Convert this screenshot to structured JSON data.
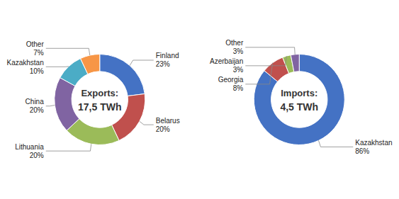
{
  "chart_data": [
    {
      "type": "donut",
      "title": "Exports:",
      "subtitle": "17,5 TWh",
      "categories": [
        "Finland",
        "Belarus",
        "Lithuania",
        "China",
        "Kazakhstan",
        "Other"
      ],
      "values": [
        23,
        20,
        20,
        20,
        10,
        7
      ],
      "value_labels": [
        "23%",
        "20%",
        "20%",
        "20%",
        "10%",
        "7%"
      ],
      "colors": [
        "#4472C4",
        "#C0504D",
        "#9BBB59",
        "#8064A2",
        "#4BACC6",
        "#F79646"
      ],
      "data_labels": true
    },
    {
      "type": "donut",
      "title": "Imports:",
      "subtitle": "4,5 TWh",
      "categories": [
        "Kazakhstan",
        "Georgia",
        "Azerbaijan",
        "Other"
      ],
      "values": [
        86,
        8,
        3,
        3
      ],
      "value_labels": [
        "86%",
        "8%",
        "3%",
        "3%"
      ],
      "colors": [
        "#4472C4",
        "#C0504D",
        "#9BBB59",
        "#8064A2"
      ],
      "data_labels": true
    }
  ]
}
